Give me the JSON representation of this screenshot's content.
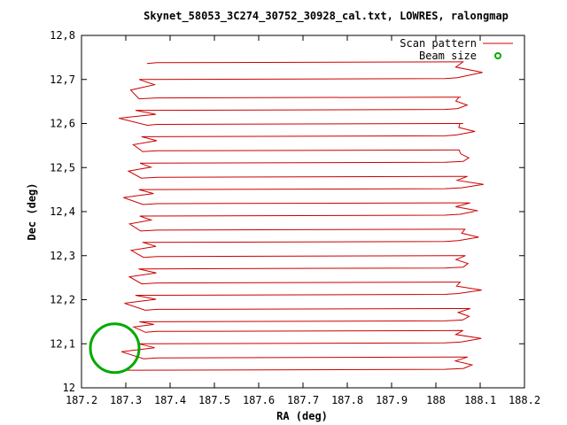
{
  "chart_data": {
    "type": "line",
    "title": "Skynet_58053_3C274_30752_30928_cal.txt, LOWRES, ralongmap",
    "xlabel": "RA (deg)",
    "ylabel": "Dec (deg)",
    "xlim": [
      187.2,
      188.2
    ],
    "ylim": [
      12.0,
      12.8
    ],
    "x_ticks": [
      187.2,
      187.3,
      187.4,
      187.5,
      187.6,
      187.7,
      187.8,
      187.9,
      188.0,
      188.1,
      188.2
    ],
    "x_tick_labels": [
      "187.2",
      "187.3",
      "187.4",
      "187.5",
      "187.6",
      "187.7",
      "187.8",
      "187.9",
      "188",
      "188.1",
      "188.2"
    ],
    "y_ticks": [
      12.0,
      12.1,
      12.2,
      12.3,
      12.4,
      12.5,
      12.6,
      12.7,
      12.8
    ],
    "y_tick_labels": [
      "12",
      "12,1",
      "12,2",
      "12,3",
      "12,4",
      "12,5",
      "12,6",
      "12,7",
      "12,8"
    ],
    "grid": false,
    "legend_position": "top-right",
    "legend": [
      {
        "label": "Scan pattern",
        "color": "#cc0000",
        "marker": "line"
      },
      {
        "label": "Beam size",
        "color": "#00aa00",
        "marker": "circle"
      }
    ],
    "series": [
      {
        "name": "Scan pattern",
        "color": "#cc0000",
        "ra_start": 187.34,
        "ra_end": 188.05,
        "dec_rows": [
          12.04,
          12.07,
          12.1,
          12.13,
          12.15,
          12.18,
          12.21,
          12.24,
          12.27,
          12.3,
          12.33,
          12.36,
          12.39,
          12.42,
          12.45,
          12.48,
          12.51,
          12.54,
          12.57,
          12.6,
          12.63,
          12.66,
          12.7,
          12.74
        ]
      }
    ],
    "beam": {
      "name": "Beam size",
      "color": "#00aa00",
      "ra_center": 187.275,
      "dec_center": 12.09,
      "diameter_deg": 0.11
    }
  }
}
